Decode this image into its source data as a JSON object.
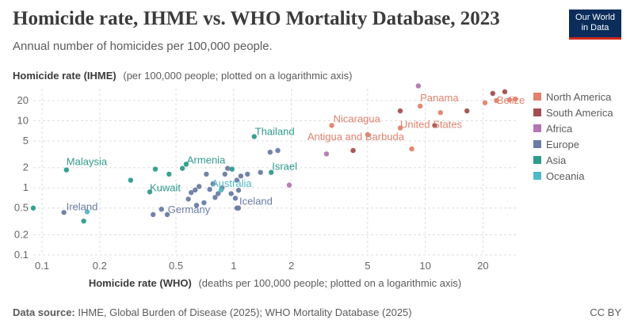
{
  "header": {
    "title": "Homicide rate, IHME vs. WHO Mortality Database, 2023",
    "subtitle": "Annual number of homicides per 100,000 people.",
    "logo_line1": "Our World",
    "logo_line2": "in Data"
  },
  "footer": {
    "source_label": "Data source:",
    "source_text": "IHME, Global Burden of Disease (2025); WHO Mortality Database (2025)",
    "license": "CC BY"
  },
  "chart_data": {
    "type": "scatter",
    "title": "Homicide rate, IHME vs. WHO Mortality Database, 2023",
    "subtitle": "Annual number of homicides per 100,000 people.",
    "ylabel_bold": "Homicide rate (IHME)",
    "ylabel_rest": "(per 100,000 people; plotted on a logarithmic axis)",
    "xlabel_bold": "Homicide rate (WHO)",
    "xlabel_rest": "(deaths per 100,000 people; plotted on a logarithmic axis)",
    "x_scale": "log",
    "y_scale": "log",
    "xlim": [
      0.09,
      30
    ],
    "ylim": [
      0.1,
      30
    ],
    "x_ticks": [
      0.1,
      0.2,
      0.5,
      1,
      2,
      5,
      10,
      20
    ],
    "x_tick_labels": [
      "0.1",
      "0.2",
      "0.5",
      "1",
      "2",
      "5",
      "10",
      "20"
    ],
    "y_ticks": [
      0.1,
      0.2,
      0.5,
      1,
      2,
      5,
      10,
      20
    ],
    "y_tick_labels": [
      "0.1",
      "0.2",
      "0.5",
      "1",
      "2",
      "5",
      "10",
      "20"
    ],
    "grid": true,
    "legend_position": "right",
    "series": [
      {
        "name": "North America",
        "color": "#e0826d",
        "points": [
          {
            "x": 3.25,
            "y": 8.5,
            "label": "Nicaragua"
          },
          {
            "x": 9.4,
            "y": 16.5,
            "label": "Panama"
          },
          {
            "x": 7.4,
            "y": 7.8,
            "label": "United States"
          },
          {
            "x": 5.0,
            "y": 6.2,
            "label": "Antigua and Barbuda"
          },
          {
            "x": 27.5,
            "y": 20.5,
            "label": "Belize"
          },
          {
            "x": 8.5,
            "y": 3.8
          },
          {
            "x": 12.0,
            "y": 13.2
          },
          {
            "x": 20.5,
            "y": 18.5
          },
          {
            "x": 23.5,
            "y": 20.0
          },
          {
            "x": 29.5,
            "y": 21.0
          }
        ]
      },
      {
        "name": "South America",
        "color": "#a2504e",
        "points": [
          {
            "x": 4.2,
            "y": 3.6
          },
          {
            "x": 7.4,
            "y": 14.0
          },
          {
            "x": 11.2,
            "y": 8.5
          },
          {
            "x": 16.5,
            "y": 14.0
          },
          {
            "x": 22.5,
            "y": 25.5
          },
          {
            "x": 26.0,
            "y": 27.0
          }
        ]
      },
      {
        "name": "Africa",
        "color": "#b276b2",
        "points": [
          {
            "x": 9.2,
            "y": 33.0
          },
          {
            "x": 3.05,
            "y": 3.2
          },
          {
            "x": 1.95,
            "y": 1.1
          }
        ]
      },
      {
        "name": "Europe",
        "color": "#6a7ca4",
        "points": [
          {
            "x": 0.13,
            "y": 0.43,
            "label": "Ireland"
          },
          {
            "x": 0.42,
            "y": 0.48,
            "label": "Germany"
          },
          {
            "x": 1.06,
            "y": 0.5,
            "label": "Iceland"
          },
          {
            "x": 0.38,
            "y": 0.4
          },
          {
            "x": 0.45,
            "y": 0.4
          },
          {
            "x": 0.58,
            "y": 0.68
          },
          {
            "x": 0.6,
            "y": 0.85
          },
          {
            "x": 0.63,
            "y": 0.93
          },
          {
            "x": 0.66,
            "y": 1.05
          },
          {
            "x": 0.7,
            "y": 0.6
          },
          {
            "x": 0.72,
            "y": 1.6
          },
          {
            "x": 0.75,
            "y": 0.95
          },
          {
            "x": 0.78,
            "y": 1.15
          },
          {
            "x": 0.8,
            "y": 0.72
          },
          {
            "x": 0.83,
            "y": 0.82
          },
          {
            "x": 0.87,
            "y": 1.0
          },
          {
            "x": 0.9,
            "y": 1.6
          },
          {
            "x": 0.93,
            "y": 1.95
          },
          {
            "x": 0.97,
            "y": 0.82
          },
          {
            "x": 1.02,
            "y": 0.7
          },
          {
            "x": 1.04,
            "y": 1.3
          },
          {
            "x": 1.06,
            "y": 0.92
          },
          {
            "x": 1.09,
            "y": 1.5
          },
          {
            "x": 1.18,
            "y": 1.6
          },
          {
            "x": 1.38,
            "y": 1.7
          },
          {
            "x": 1.55,
            "y": 3.4
          },
          {
            "x": 1.7,
            "y": 3.6
          },
          {
            "x": 0.64,
            "y": 0.55
          },
          {
            "x": 1.04,
            "y": 0.5
          }
        ]
      },
      {
        "name": "Asia",
        "color": "#2e9b8d",
        "points": [
          {
            "x": 0.134,
            "y": 1.85,
            "label": "Malaysia"
          },
          {
            "x": 0.365,
            "y": 0.87,
            "label": "Kuwait"
          },
          {
            "x": 0.565,
            "y": 2.25,
            "label": "Armenia"
          },
          {
            "x": 1.28,
            "y": 5.8,
            "label": "Thailand"
          },
          {
            "x": 1.57,
            "y": 1.7,
            "label": "Israel"
          },
          {
            "x": 0.09,
            "y": 0.5
          },
          {
            "x": 0.165,
            "y": 0.32
          },
          {
            "x": 0.29,
            "y": 1.3
          },
          {
            "x": 0.39,
            "y": 1.9
          },
          {
            "x": 0.46,
            "y": 1.6
          },
          {
            "x": 0.54,
            "y": 1.95
          },
          {
            "x": 0.98,
            "y": 1.9
          }
        ]
      },
      {
        "name": "Oceania",
        "color": "#4fb8c6",
        "points": [
          {
            "x": 0.86,
            "y": 0.93,
            "label": "Australia"
          },
          {
            "x": 0.172,
            "y": 0.44
          }
        ]
      }
    ]
  }
}
